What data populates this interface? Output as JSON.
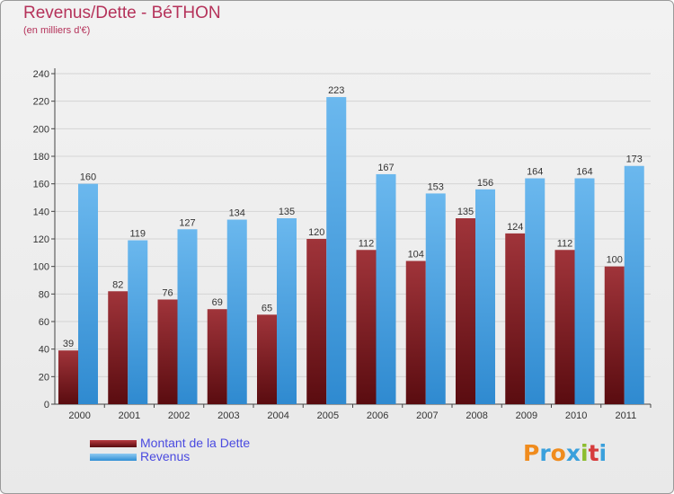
{
  "title": "Revenus/Dette - BéTHON",
  "subtitle": "(en milliers d'€)",
  "logo": {
    "text": "Proxiti",
    "letter_colors": [
      "#f08c1e",
      "#3aa0dc",
      "#f08c1e",
      "#3aa0dc",
      "#8cbd2e",
      "#d63c3c",
      "#3aa0dc"
    ]
  },
  "colors": {
    "dette": "#7a1a1e",
    "revenus": "#4aa6e6",
    "grid": "#d4d4d4",
    "axis": "#444444",
    "text": "#333333"
  },
  "chart_data": {
    "type": "bar",
    "title": "Revenus/Dette - BéTHON",
    "ylabel": "(en milliers d'€)",
    "xlabel": "",
    "categories": [
      "2000",
      "2001",
      "2002",
      "2003",
      "2004",
      "2005",
      "2006",
      "2007",
      "2008",
      "2009",
      "2010",
      "2011"
    ],
    "series": [
      {
        "name": "Montant de la Dette",
        "values": [
          39,
          82,
          76,
          69,
          65,
          120,
          112,
          104,
          135,
          124,
          112,
          100
        ]
      },
      {
        "name": "Revenus",
        "values": [
          160,
          119,
          127,
          134,
          135,
          223,
          167,
          153,
          156,
          164,
          164,
          173
        ]
      }
    ],
    "ylim": [
      0,
      240
    ],
    "yticks": [
      0,
      20,
      40,
      60,
      80,
      100,
      120,
      140,
      160,
      180,
      200,
      220,
      240
    ],
    "grid": true,
    "legend": "bottom-left"
  }
}
